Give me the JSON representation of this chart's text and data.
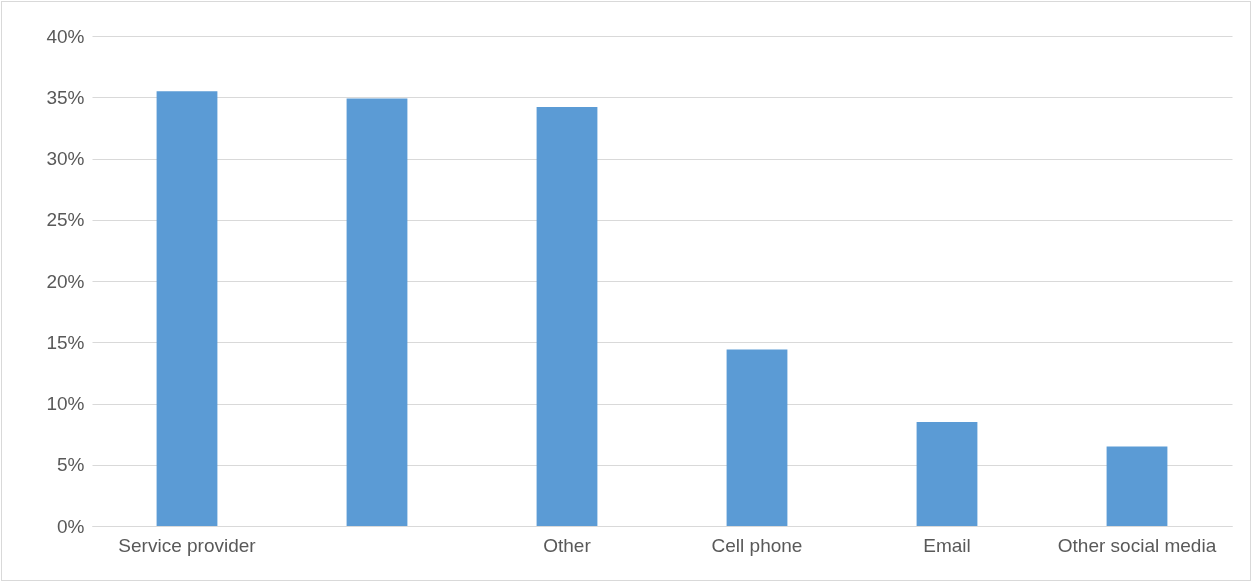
{
  "chart_data": {
    "type": "bar",
    "categories": [
      "Service provider",
      null,
      "Other",
      "Cell phone",
      "Email",
      "Other social media"
    ],
    "values": [
      35.5,
      34.9,
      34.2,
      14.4,
      8.5,
      6.5
    ],
    "color": "#5b9bd5",
    "ylim": [
      0,
      40
    ],
    "yticks": [
      {
        "value": 0,
        "label": "0%"
      },
      {
        "value": 5,
        "label": "5%"
      },
      {
        "value": 10,
        "label": "10%"
      },
      {
        "value": 15,
        "label": "15%"
      },
      {
        "value": 20,
        "label": "20%"
      },
      {
        "value": 25,
        "label": "25%"
      },
      {
        "value": 30,
        "label": "30%"
      },
      {
        "value": 35,
        "label": "35%"
      },
      {
        "value": 40,
        "label": "40%"
      }
    ],
    "grid": "y"
  }
}
